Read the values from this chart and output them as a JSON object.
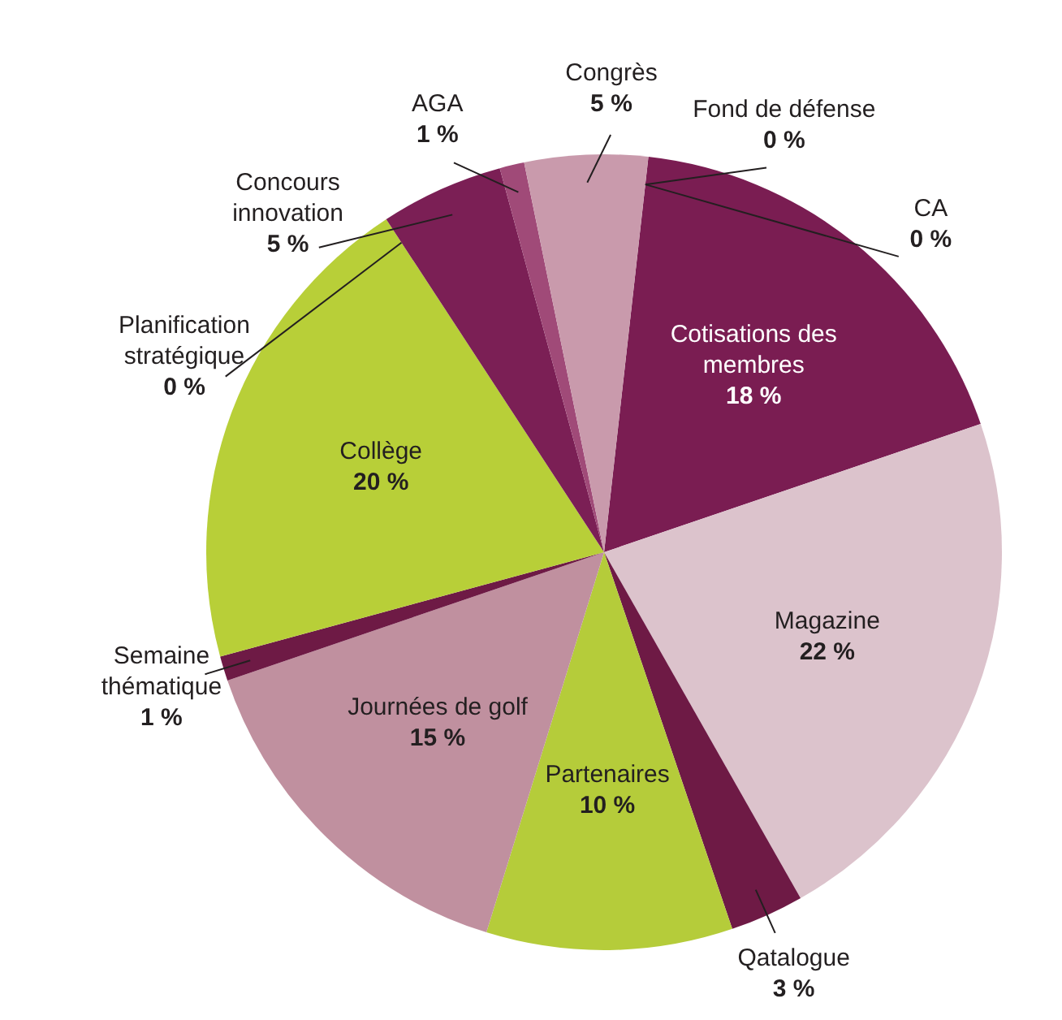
{
  "chart_data": {
    "type": "pie",
    "categories": [
      "Cotisations des membres",
      "Magazine",
      "Qatalogue",
      "Partenaires",
      "Journées de golf",
      "Semaine thématique",
      "Collège",
      "Planification stratégique",
      "Concours innovation",
      "AGA",
      "Congrès",
      "Fond de défense",
      "CA"
    ],
    "values": [
      18,
      22,
      3,
      10,
      15,
      1,
      20,
      0,
      5,
      1,
      5,
      0,
      0
    ],
    "value_labels": [
      "18 %",
      "22 %",
      "3 %",
      "10 %",
      "15 %",
      "1 %",
      "20 %",
      "0 %",
      "5 %",
      "1 %",
      "5 %",
      "0 %",
      "0 %"
    ],
    "colors": [
      "#7a1d52",
      "#dcc3cc",
      "#6e1a45",
      "#b5cc3a",
      "#c0909f",
      "#6e1a45",
      "#b8cf38",
      "#8a2060",
      "#7b1f55",
      "#a04a78",
      "#c99aac",
      "#8a2060",
      "#8a2060"
    ],
    "legend": false
  }
}
